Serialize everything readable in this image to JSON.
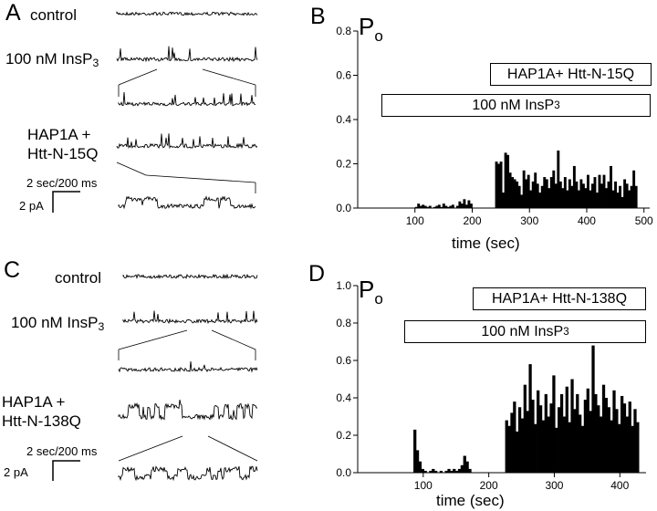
{
  "panels": {
    "A": {
      "letter": "A",
      "trace_labels": {
        "control": "control",
        "insp3_prefix": "100 nM InsP",
        "insp3_sub": "3",
        "hap_line1": "HAP1A +",
        "hap_line2": "Htt-N-15Q"
      },
      "scale": {
        "time": "2 sec/200 ms",
        "current": "2 pA"
      }
    },
    "C": {
      "letter": "C",
      "trace_labels": {
        "control": "control",
        "insp3_prefix": "100 nM InsP",
        "insp3_sub": "3",
        "hap_line1": "HAP1A +",
        "hap_line2": "Htt-N-138Q"
      },
      "scale": {
        "time": "2 sec/200 ms",
        "current": "2 pA"
      }
    },
    "B": {
      "letter": "B",
      "box_hap": "HAP1A+ Htt-N-15Q",
      "box_insp3_prefix": "100 nM InsP",
      "box_insp3_sub": "3"
    },
    "D": {
      "letter": "D",
      "box_hap": "HAP1A+ Htt-N-138Q",
      "box_insp3_prefix": "100 nM InsP",
      "box_insp3_sub": "3"
    }
  },
  "chart_data": [
    {
      "panel": "B",
      "type": "bar",
      "ylabel_main": "P",
      "ylabel_sub": "o",
      "xlabel": "time (sec)",
      "xlim": [
        0,
        510
      ],
      "ylim": [
        0,
        0.8
      ],
      "xticks": [
        100,
        200,
        300,
        400,
        500
      ],
      "yticks": [
        0.0,
        0.2,
        0.4,
        0.6,
        0.8
      ],
      "ytick_labels": [
        "0.0",
        "0.2",
        "0.4",
        "0.6",
        "0.8"
      ],
      "bin_width": 4,
      "bar_start": 100,
      "values": [
        0.005,
        0.02,
        0.01,
        0.015,
        0.01,
        0.005,
        0.01,
        0.0,
        0.005,
        0.01,
        0.015,
        0.005,
        0.02,
        0.01,
        0.005,
        0.01,
        0.015,
        0.0,
        0.01,
        0.03,
        0.02,
        0.04,
        0.015,
        0.035,
        0.02,
        0.0,
        0.0,
        0.0,
        0.0,
        0.0,
        0.0,
        0.0,
        0.0,
        0.0,
        0.0,
        0.21,
        0.2,
        0.21,
        0.07,
        0.25,
        0.24,
        0.16,
        0.14,
        0.13,
        0.12,
        0.1,
        0.06,
        0.17,
        0.13,
        0.15,
        0.08,
        0.12,
        0.16,
        0.11,
        0.07,
        0.1,
        0.14,
        0.13,
        0.09,
        0.14,
        0.17,
        0.11,
        0.26,
        0.12,
        0.09,
        0.14,
        0.08,
        0.13,
        0.1,
        0.19,
        0.12,
        0.08,
        0.13,
        0.11,
        0.09,
        0.15,
        0.08,
        0.11,
        0.14,
        0.07,
        0.15,
        0.11,
        0.15,
        0.09,
        0.12,
        0.19,
        0.08,
        0.12,
        0.07,
        0.1,
        0.05,
        0.13,
        0.11,
        0.08,
        0.1,
        0.17,
        0.1
      ]
    },
    {
      "panel": "D",
      "type": "bar",
      "ylabel_main": "P",
      "ylabel_sub": "o",
      "xlabel": "time (sec)",
      "xlim": [
        0,
        440
      ],
      "ylim": [
        0,
        1.0
      ],
      "xticks": [
        100,
        200,
        300,
        400
      ],
      "yticks": [
        0.0,
        0.2,
        0.4,
        0.6,
        0.8,
        1.0
      ],
      "ytick_labels": [
        "0.0",
        "0.2",
        "0.4",
        "0.6",
        "0.8",
        "1.0"
      ],
      "bin_width": 4,
      "bar_start": 85,
      "values": [
        0.23,
        0.12,
        0.06,
        0.02,
        0.01,
        0.0,
        0.01,
        0.02,
        0.01,
        0.0,
        0.01,
        0.0,
        0.01,
        0.02,
        0.01,
        0.02,
        0.01,
        0.02,
        0.04,
        0.09,
        0.06,
        0.02,
        0.0,
        0.0,
        0.0,
        0.0,
        0.0,
        0.0,
        0.0,
        0.0,
        0.0,
        0.0,
        0.0,
        0.0,
        0.0,
        0.28,
        0.25,
        0.32,
        0.38,
        0.22,
        0.35,
        0.29,
        0.47,
        0.33,
        0.58,
        0.39,
        0.26,
        0.44,
        0.36,
        0.28,
        0.42,
        0.3,
        0.37,
        0.52,
        0.24,
        0.35,
        0.42,
        0.3,
        0.46,
        0.27,
        0.5,
        0.34,
        0.42,
        0.31,
        0.25,
        0.39,
        0.45,
        0.33,
        0.68,
        0.42,
        0.36,
        0.3,
        0.47,
        0.4,
        0.35,
        0.28,
        0.44,
        0.34,
        0.26,
        0.41,
        0.37,
        0.3,
        0.38,
        0.25,
        0.34,
        0.27
      ]
    }
  ]
}
